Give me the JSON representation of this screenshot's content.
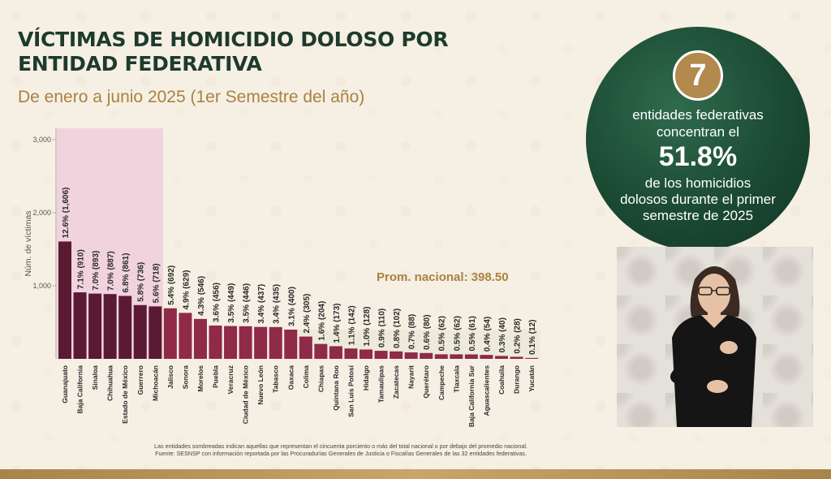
{
  "title": "VÍCTIMAS DE HOMICIDIO DOLOSO POR ENTIDAD FEDERATIVA",
  "subtitle": "De enero a junio 2025 (1er Semestre del año)",
  "footnote": {
    "line1": "Las entidades sombreadas indican aquellas que representan el cincuenta porciento o más del total nacional o por debajo del promedio nacional.",
    "line2": "Fuente: SESNSP con información reportada por las Procuradurías Generales de Justicia o Fiscalías Generales de las 32 entidades federativas."
  },
  "callout": {
    "number": "7",
    "line1a": "entidades federativas",
    "line1b": "concentran el",
    "percent": "51.8%",
    "line2a": "de los homicidios",
    "line2b": "dolosos durante el primer",
    "line2c": "semestre de 2025"
  },
  "colors": {
    "dark_bar": "#5a1a33",
    "bar": "#8f2a48",
    "highlight_top": "#f0d3dc",
    "highlight_below_avg": "#eeeadb",
    "title": "#1d3b2d",
    "gold": "#a9823f"
  },
  "video_icon": "sign-language-interpreter",
  "chart_data": {
    "type": "bar",
    "ylabel": "Núm. de víctimas",
    "ylim": [
      0,
      3000
    ],
    "yticks": [
      1000,
      2000,
      3000
    ],
    "ytick_labels": [
      "1,000",
      "2,000",
      "3,000"
    ],
    "average": 398.5,
    "average_label": "Prom. nacional: 398.50",
    "highlight_top_count": 7,
    "categories": [
      "Guanajuato",
      "Baja California",
      "Sinaloa",
      "Chihuahua",
      "Estado de México",
      "Guerrero",
      "Michoacán",
      "Jalisco",
      "Sonora",
      "Morelos",
      "Puebla",
      "Veracruz",
      "Ciudad de México",
      "Nuevo León",
      "Tabasco",
      "Oaxaca",
      "Colima",
      "Chiapas",
      "Quintana Roo",
      "San Luis Potosí",
      "Hidalgo",
      "Tamaulipas",
      "Zacatecas",
      "Nayarit",
      "Querétaro",
      "Campeche",
      "Tlaxcala",
      "Baja California Sur",
      "Aguascalientes",
      "Coahuila",
      "Durango",
      "Yucatán"
    ],
    "values": [
      1606,
      910,
      893,
      887,
      861,
      736,
      718,
      692,
      629,
      546,
      456,
      449,
      446,
      437,
      435,
      400,
      305,
      204,
      173,
      142,
      128,
      110,
      102,
      88,
      80,
      62,
      62,
      61,
      54,
      40,
      28,
      12
    ],
    "labels": [
      "12.6% (1,606)",
      "7.1% (910)",
      "7.0% (893)",
      "7.0% (887)",
      "6.8% (861)",
      "5.8% (736)",
      "5.6% (718)",
      "5.4% (692)",
      "4.9% (629)",
      "4.3% (546)",
      "3.6% (456)",
      "3.5% (449)",
      "3.5% (446)",
      "3.4% (437)",
      "3.4% (435)",
      "3.1% (400)",
      "2.4% (305)",
      "1.6% (204)",
      "1.4% (173)",
      "1.1% (142)",
      "1.0% (128)",
      "0.9% (110)",
      "0.8% (102)",
      "0.7% (88)",
      "0.6% (80)",
      "0.5% (62)",
      "0.5% (62)",
      "0.5% (61)",
      "0.4% (54)",
      "0.3% (40)",
      "0.2% (28)",
      "0.1% (12)"
    ]
  }
}
